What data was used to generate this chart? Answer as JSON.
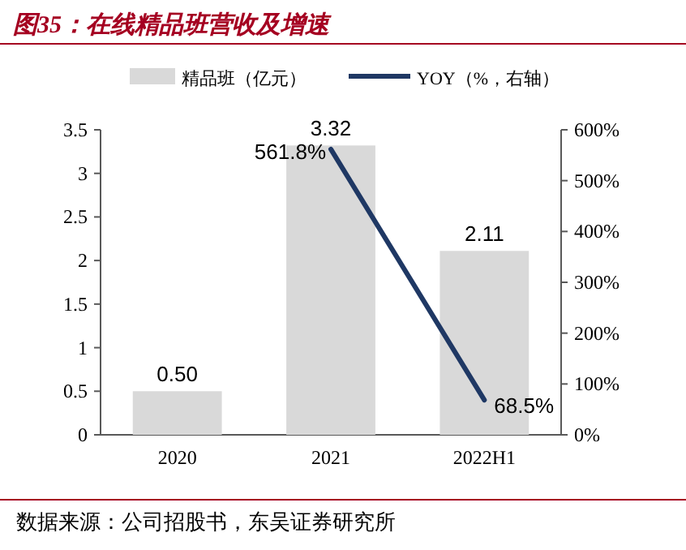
{
  "chart_data": {
    "type": "bar",
    "title": "图35：在线精品班营收及增速",
    "categories": [
      "2020",
      "2021",
      "2022H1"
    ],
    "series": [
      {
        "name": "精品班（亿元）",
        "color": "#d9d9d9",
        "values": [
          0.5,
          3.32,
          2.11
        ],
        "value_labels": [
          "0.50",
          "3.32",
          "2.11"
        ]
      },
      {
        "name": "YOY（%，右轴）",
        "type": "line",
        "axis": "y2",
        "color": "#1f3864",
        "values": [
          null,
          561.8,
          68.5
        ],
        "value_labels": [
          null,
          "561.8%",
          "68.5%"
        ]
      }
    ],
    "ylim": [
      0,
      3.5
    ],
    "yticks": [
      0,
      0.5,
      1,
      1.5,
      2,
      2.5,
      3,
      3.5
    ],
    "y2lim": [
      0,
      600
    ],
    "y2ticks": [
      {
        "value": 0,
        "label": "0%"
      },
      {
        "value": 100,
        "label": "100%"
      },
      {
        "value": 200,
        "label": "200%"
      },
      {
        "value": 300,
        "label": "300%"
      },
      {
        "value": 400,
        "label": "400%"
      },
      {
        "value": 500,
        "label": "500%"
      },
      {
        "value": 600,
        "label": "600%"
      }
    ],
    "legend": "top",
    "grid": false,
    "annotations": [
      "数据来源：公司招股书，东吴证券研究所"
    ]
  }
}
